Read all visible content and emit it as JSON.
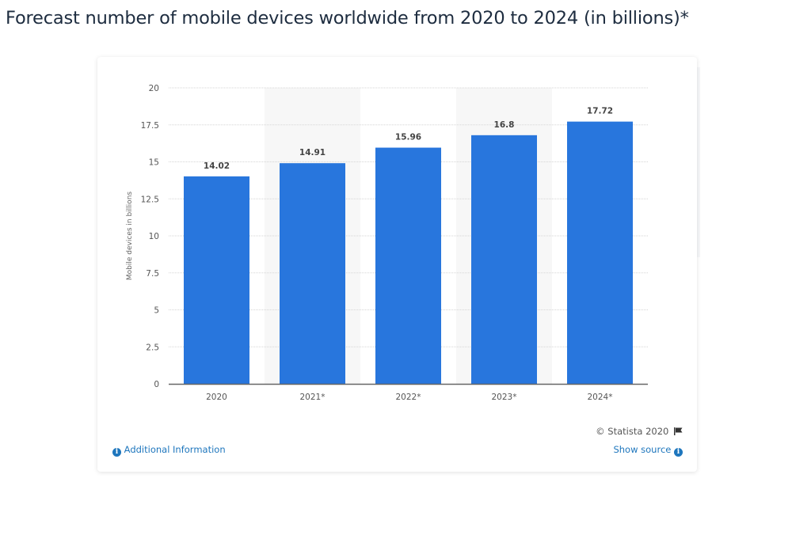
{
  "page": {
    "title": "Forecast number of mobile devices worldwide from 2020 to 2024 (in billions)*"
  },
  "footer": {
    "credit": "© Statista 2020",
    "credit_icon": "flag-icon",
    "additional_info": "Additional Information",
    "additional_info_icon": "info-icon",
    "show_source": "Show source",
    "show_source_icon": "info-icon"
  },
  "colors": {
    "bar": "#2876dd",
    "highlight_band": "#f7f7f7",
    "link": "#1e76bd"
  },
  "chart_data": {
    "type": "bar",
    "title": "Forecast number of mobile devices worldwide from 2020 to 2024 (in billions)*",
    "categories": [
      "2020",
      "2021*",
      "2022*",
      "2023*",
      "2024*"
    ],
    "values": [
      14.02,
      14.91,
      15.96,
      16.8,
      17.72
    ],
    "data_labels": [
      "14.02",
      "14.91",
      "15.96",
      "16.8",
      "17.72"
    ],
    "xlabel": "",
    "ylabel": "Mobile devices in billions",
    "ylim": [
      0,
      20
    ],
    "yticks": [
      0,
      2.5,
      5,
      7.5,
      10,
      12.5,
      15,
      17.5,
      20
    ],
    "ytick_labels": [
      "0",
      "2.5",
      "5",
      "7.5",
      "10",
      "12.5",
      "15",
      "17.5",
      "20"
    ],
    "grid": true,
    "legend": "none"
  }
}
